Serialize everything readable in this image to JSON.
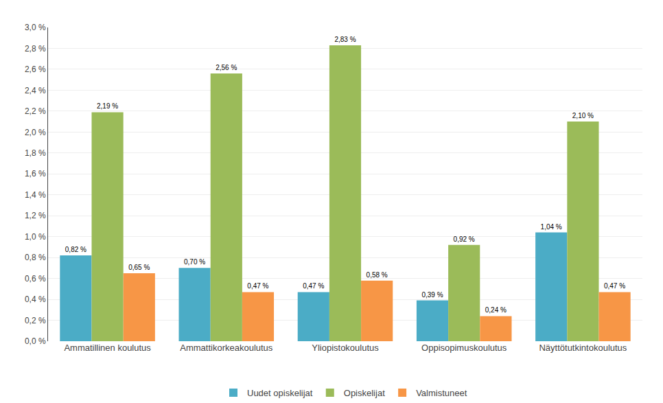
{
  "chart_data": {
    "type": "bar",
    "categories": [
      "Ammatillinen koulutus",
      "Ammattikorkeakoulutus",
      "Yliopistokoulutus",
      "Oppisopimuskoulutus",
      "Näyttötutkintokoulutus"
    ],
    "series": [
      {
        "name": "Uudet opiskelijat",
        "color": "#4BACC6",
        "values": [
          0.82,
          0.7,
          0.47,
          0.39,
          1.04
        ],
        "value_labels": [
          "0,82 %",
          "0,70 %",
          "0,47 %",
          "0,39 %",
          "1,04 %"
        ]
      },
      {
        "name": "Opiskelijat",
        "color": "#9BBB59",
        "values": [
          2.19,
          2.56,
          2.83,
          0.92,
          2.1
        ],
        "value_labels": [
          "2,19 %",
          "2,56 %",
          "2,83 %",
          "0,92 %",
          "2,10 %"
        ]
      },
      {
        "name": "Valmistuneet",
        "color": "#F79646",
        "values": [
          0.65,
          0.47,
          0.58,
          0.24,
          0.47
        ],
        "value_labels": [
          "0,65 %",
          "0,47 %",
          "0,58 %",
          "0,24 %",
          "0,47 %"
        ]
      }
    ],
    "ylim": [
      0,
      3.0
    ],
    "yticks": [
      {
        "value": 0.0,
        "label": "0,0 %"
      },
      {
        "value": 0.2,
        "label": "0,2 %"
      },
      {
        "value": 0.4,
        "label": "0,4 %"
      },
      {
        "value": 0.6,
        "label": "0,6 %"
      },
      {
        "value": 0.8,
        "label": "0,8 %"
      },
      {
        "value": 1.0,
        "label": "1,0 %"
      },
      {
        "value": 1.2,
        "label": "1,2 %"
      },
      {
        "value": 1.4,
        "label": "1,4 %"
      },
      {
        "value": 1.6,
        "label": "1,6 %"
      },
      {
        "value": 1.8,
        "label": "1,8 %"
      },
      {
        "value": 2.0,
        "label": "2,0 %"
      },
      {
        "value": 2.2,
        "label": "2,2 %"
      },
      {
        "value": 2.4,
        "label": "2,4 %"
      },
      {
        "value": 2.6,
        "label": "2,6 %"
      },
      {
        "value": 2.8,
        "label": "2,8 %"
      },
      {
        "value": 3.0,
        "label": "3,0 %"
      }
    ],
    "grid": true,
    "legend": "bottom",
    "data_labels": true
  }
}
